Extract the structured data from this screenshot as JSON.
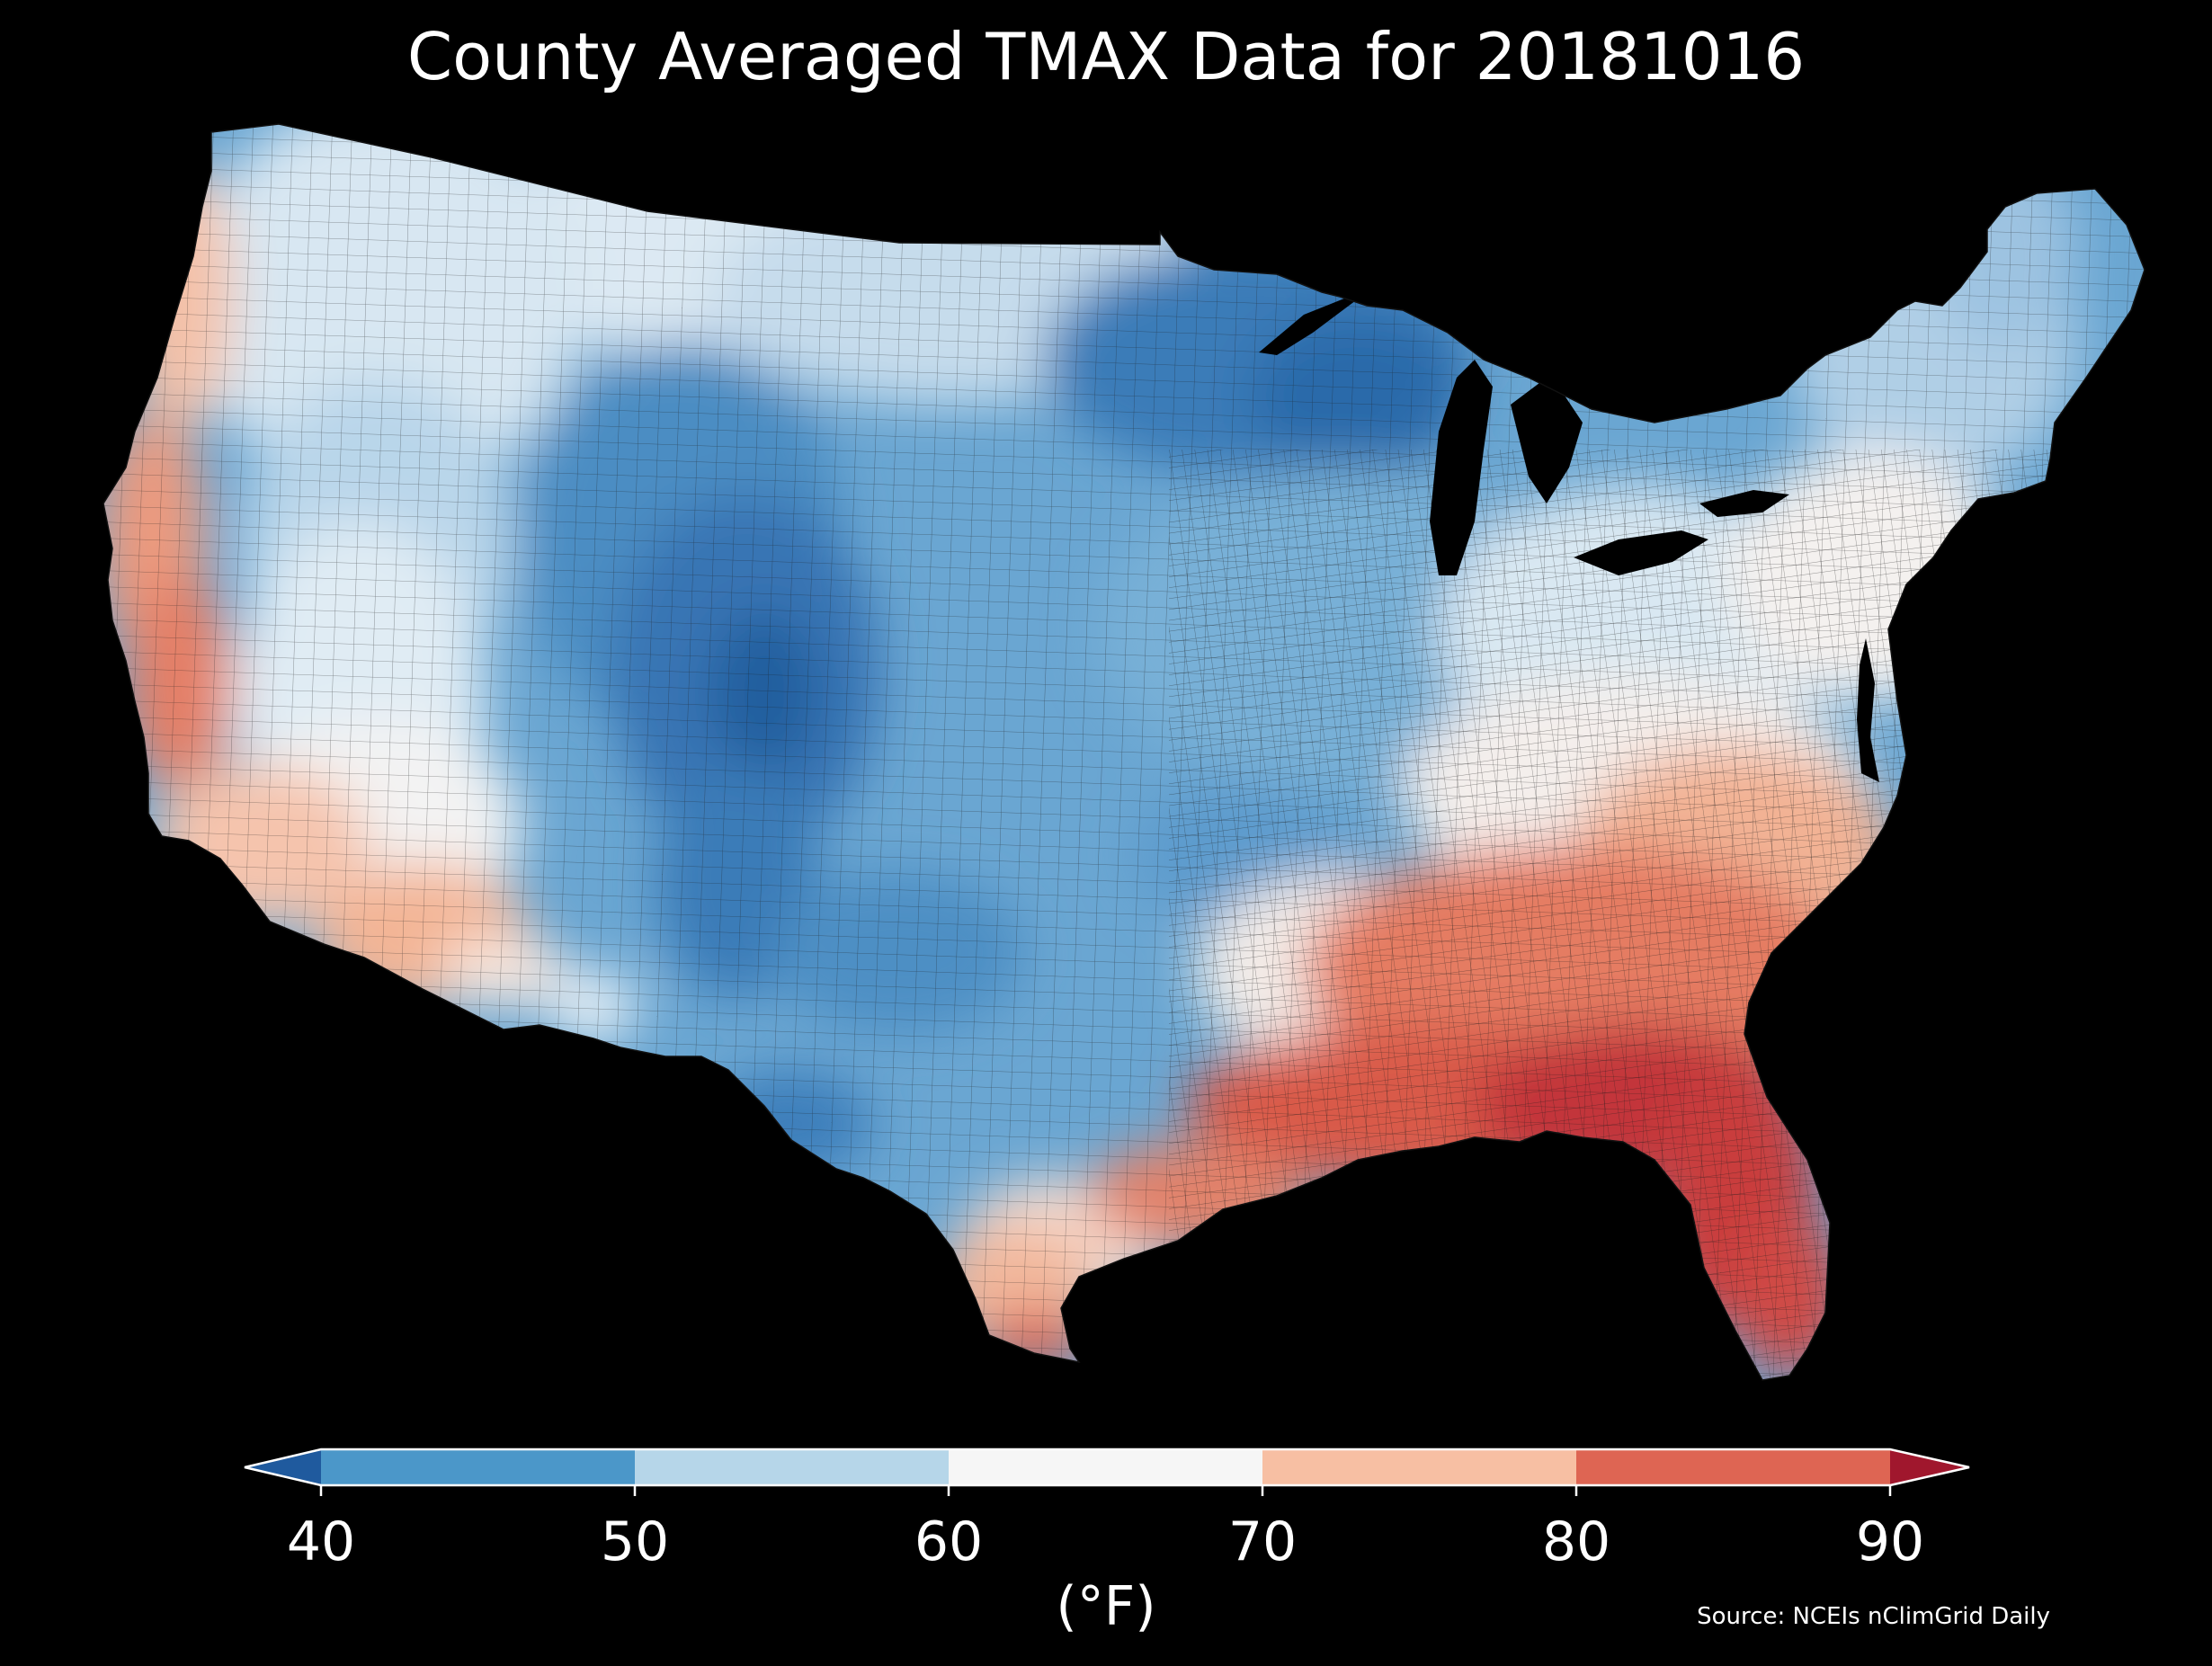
{
  "title": "County Averaged TMAX Data for 20181016",
  "legend": {
    "unit": "(°F)",
    "ticks": [
      "40",
      "50",
      "60",
      "70",
      "80",
      "90"
    ],
    "bins": [
      {
        "range": "<40",
        "color": "#1f5a9e"
      },
      {
        "range": "40-50",
        "color": "#4b97c9"
      },
      {
        "range": "50-60",
        "color": "#b6d6e9"
      },
      {
        "range": "60-70",
        "color": "#f6f6f6"
      },
      {
        "range": "70-80",
        "color": "#f7bfa3"
      },
      {
        "range": "80-90",
        "color": "#de6553"
      },
      {
        "range": ">90",
        "color": "#a0172d"
      }
    ],
    "extend": "both"
  },
  "source": "Source: NCEIs nClimGrid Daily",
  "map": {
    "region": "Contiguous United States",
    "variable": "TMAX",
    "date": "20181016",
    "background_color": "#000000",
    "pattern": "cool northwest, central plains and upper midwest; warm Pacific coast, southeast and Gulf coast"
  }
}
